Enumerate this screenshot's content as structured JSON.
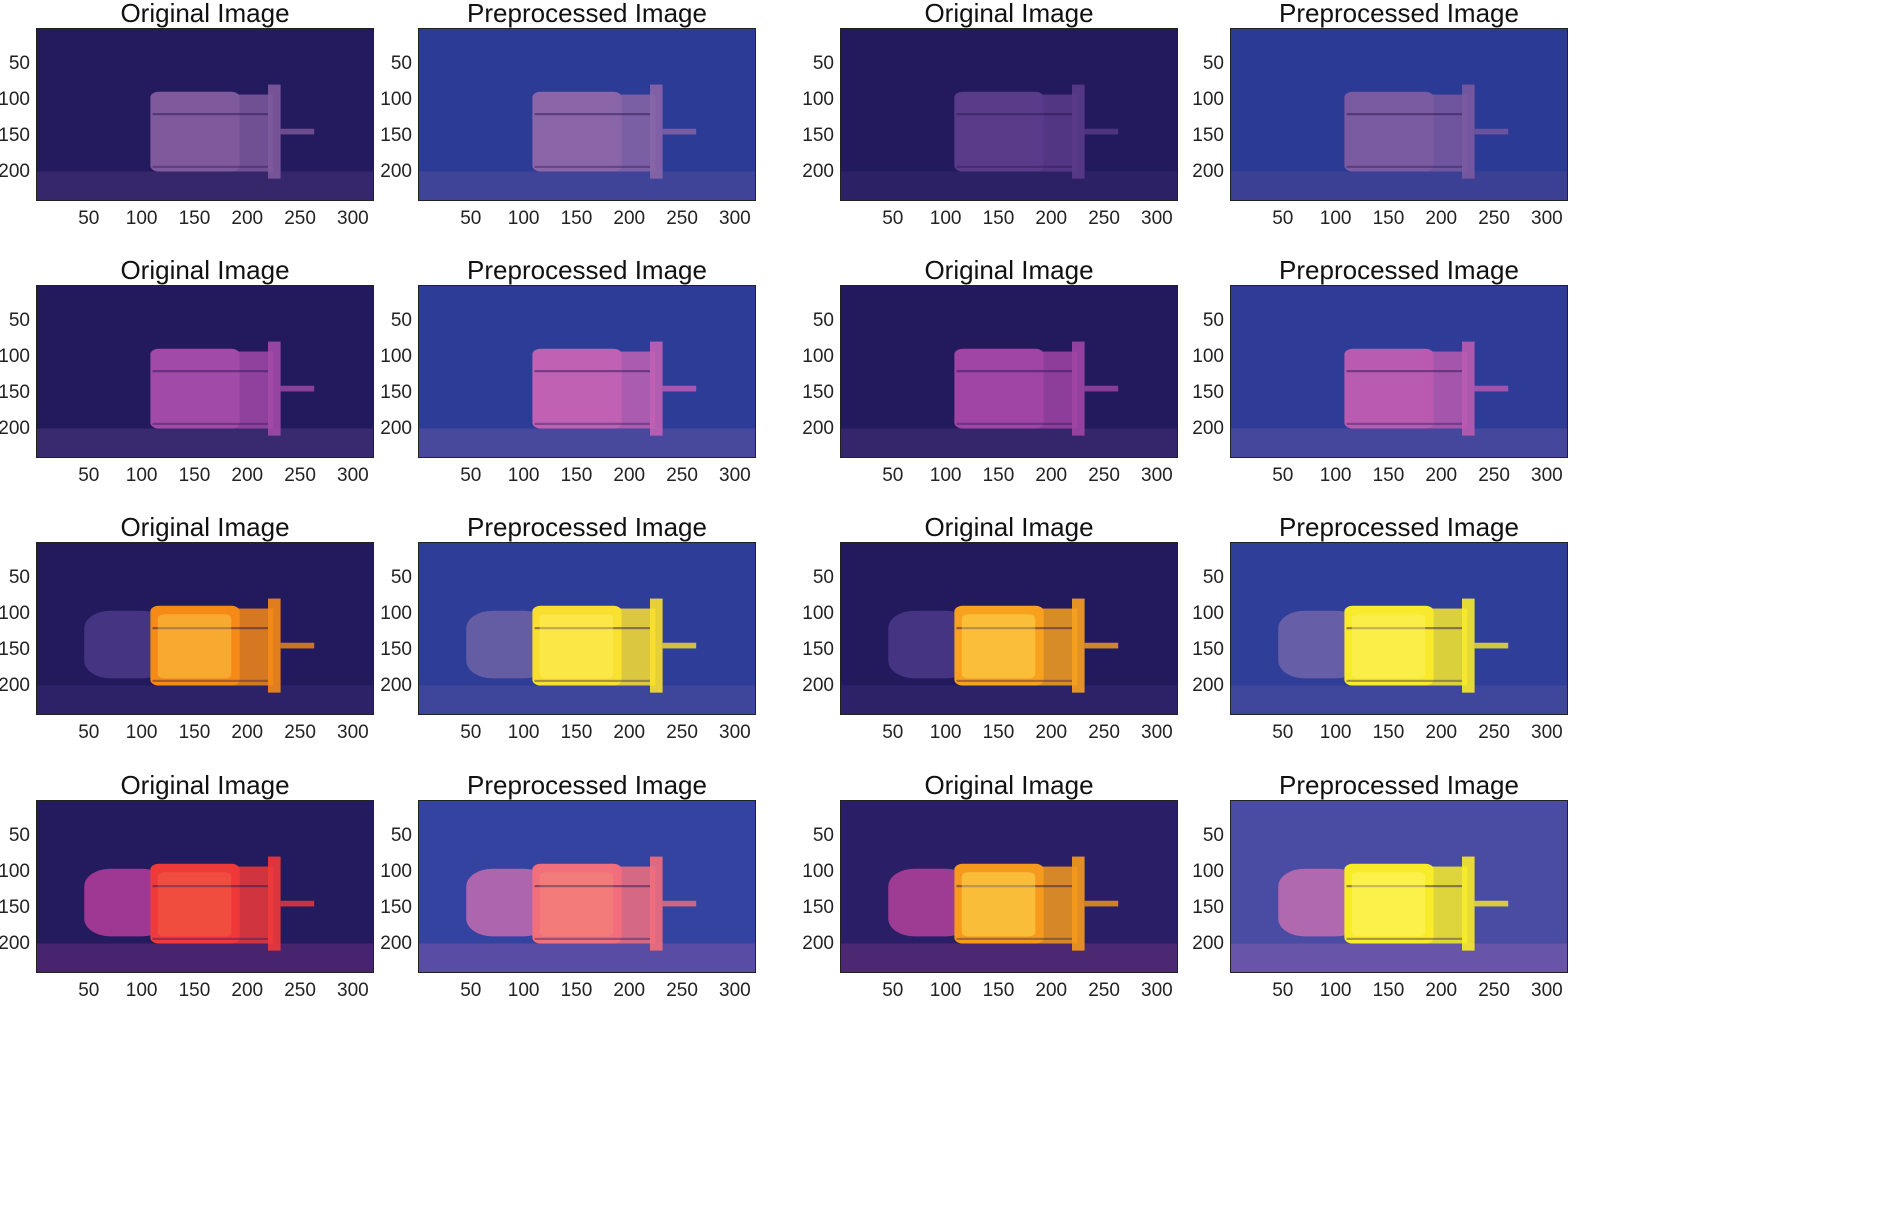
{
  "figure": {
    "x_ticks": [
      "50",
      "100",
      "150",
      "200",
      "250",
      "300"
    ],
    "y_ticks": [
      "50",
      "100",
      "150",
      "200"
    ],
    "x_tick_values": [
      50,
      100,
      150,
      200,
      250,
      300
    ],
    "y_tick_values": [
      50,
      100,
      150,
      200
    ],
    "x_range": [
      0,
      320
    ],
    "y_range": [
      0,
      240
    ],
    "panels": [
      {
        "title": "Original Image",
        "bg": "#241a5e",
        "body": "#7e5a9c",
        "tail": "#6d4f93",
        "heat": 0.0
      },
      {
        "title": "Preprocessed Image",
        "bg": "#2c3b96",
        "body": "#8a66a8",
        "tail": "#7860a2",
        "heat": 0.0
      },
      {
        "title": "Original Image",
        "bg": "#221a5c",
        "body": "#5a3b8a",
        "tail": "#4f3684",
        "heat": 0.0
      },
      {
        "title": "Preprocessed Image",
        "bg": "#2b3a94",
        "body": "#7a5aa0",
        "tail": "#6e5398",
        "heat": 0.0
      },
      {
        "title": "Original Image",
        "bg": "#231a5e",
        "body": "#a24aa8",
        "tail": "#7d57a0",
        "heat": 0.1
      },
      {
        "title": "Preprocessed Image",
        "bg": "#2d3c97",
        "body": "#c161b4",
        "tail": "#9b6fb0",
        "heat": 0.1
      },
      {
        "title": "Original Image",
        "bg": "#231a5e",
        "body": "#a045a5",
        "tail": "#6d4a98",
        "heat": 0.1
      },
      {
        "title": "Preprocessed Image",
        "bg": "#2e3c98",
        "body": "#b95bb0",
        "tail": "#8a68aa",
        "heat": 0.1
      },
      {
        "title": "Original Image",
        "bg": "#231a5e",
        "body": "#f58a16",
        "tail": "#4a3a88",
        "heat": 0.8
      },
      {
        "title": "Preprocessed Image",
        "bg": "#2e3d98",
        "body": "#f9e030",
        "tail": "#6e63a6",
        "heat": 0.9
      },
      {
        "title": "Original Image",
        "bg": "#231a5e",
        "body": "#f7a11e",
        "tail": "#4a3a88",
        "heat": 0.85
      },
      {
        "title": "Preprocessed Image",
        "bg": "#2f3e99",
        "body": "#f8ea2c",
        "tail": "#7064a8",
        "heat": 0.95
      },
      {
        "title": "Original Image",
        "bg": "#241b5f",
        "body": "#ef3a3a",
        "tail": "#b53d9b",
        "heat": 0.6
      },
      {
        "title": "Preprocessed Image",
        "bg": "#3442a0",
        "body": "#f26f7c",
        "tail": "#c36bb0",
        "heat": 0.6
      },
      {
        "title": "Original Image",
        "bg": "#2a1f66",
        "body": "#f59a1c",
        "tail": "#b3429c",
        "heat": 0.9
      },
      {
        "title": "Preprocessed Image",
        "bg": "#4a4ca4",
        "body": "#f8ec2a",
        "tail": "#c26db2",
        "heat": 1.0
      }
    ]
  }
}
